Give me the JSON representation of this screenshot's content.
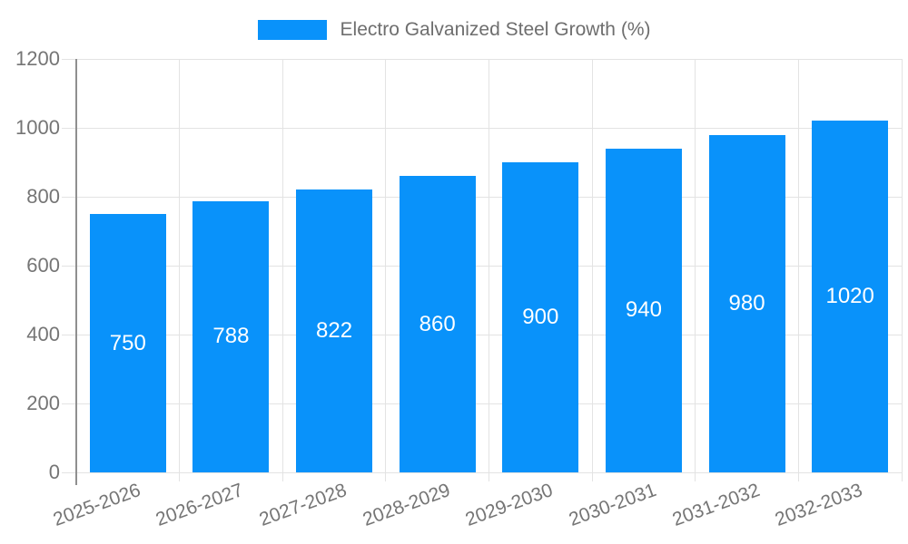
{
  "chart_data": {
    "type": "bar",
    "title": "",
    "legend": {
      "label": "Electro Galvanized Steel Growth (%)",
      "position": "top-center"
    },
    "categories": [
      "2025-2026",
      "2026-2027",
      "2027-2028",
      "2028-2029",
      "2029-2030",
      "2030-2031",
      "2031-2032",
      "2032-2033"
    ],
    "values": [
      750,
      788,
      822,
      860,
      900,
      940,
      980,
      1020
    ],
    "value_labels_shown": true,
    "value_label_position": "center",
    "xlabel": "",
    "ylabel": "",
    "ylim": [
      0,
      1200
    ],
    "yticks": [
      0,
      200,
      400,
      600,
      800,
      1000,
      1200
    ],
    "x_label_rotation_deg": -20,
    "grid": true,
    "colors": {
      "bar": "#0992fa",
      "value_label": "#ffffff",
      "axis_text": "#757575",
      "legend_text": "#6e6e6e",
      "gridline": "#e3e3e3",
      "axis_line": "#8f8f8f",
      "background": "#ffffff"
    }
  }
}
